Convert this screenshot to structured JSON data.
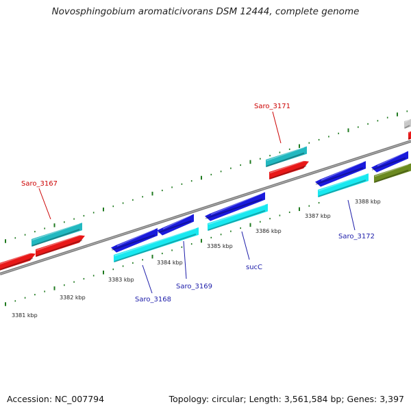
{
  "title": "Novosphingobium aromaticivorans DSM 12444, complete genome",
  "footer": {
    "accession": "Accession: NC_007794",
    "summary": "Topology: circular; Length: 3,561,584 bp; Genes: 3,397"
  },
  "colors": {
    "backbone": "#8a8a8a",
    "ticks": "#1f7a1f",
    "red": "#e81818",
    "teal": "#22b8c0",
    "blue": "#1a1adc",
    "cyan": "#18e8f0",
    "olive": "#6b8a20",
    "grey": "#c8c8c8",
    "label_red": "#cc0000",
    "label_blue": "#1a1aa8"
  },
  "kbp_labels": [
    "3381 kbp",
    "3382 kbp",
    "3383 kbp",
    "3384 kbp",
    "3385 kbp",
    "3386 kbp",
    "3387 kbp",
    "3388 kbp"
  ],
  "gene_labels": [
    {
      "text": "Saro_3167",
      "color": "label_red"
    },
    {
      "text": "Saro_3171",
      "color": "label_red"
    },
    {
      "text": "Saro_3168",
      "color": "label_blue"
    },
    {
      "text": "Saro_3169",
      "color": "label_blue"
    },
    {
      "text": "sucC",
      "color": "label_blue"
    },
    {
      "text": "Saro_3172",
      "color": "label_blue"
    }
  ]
}
